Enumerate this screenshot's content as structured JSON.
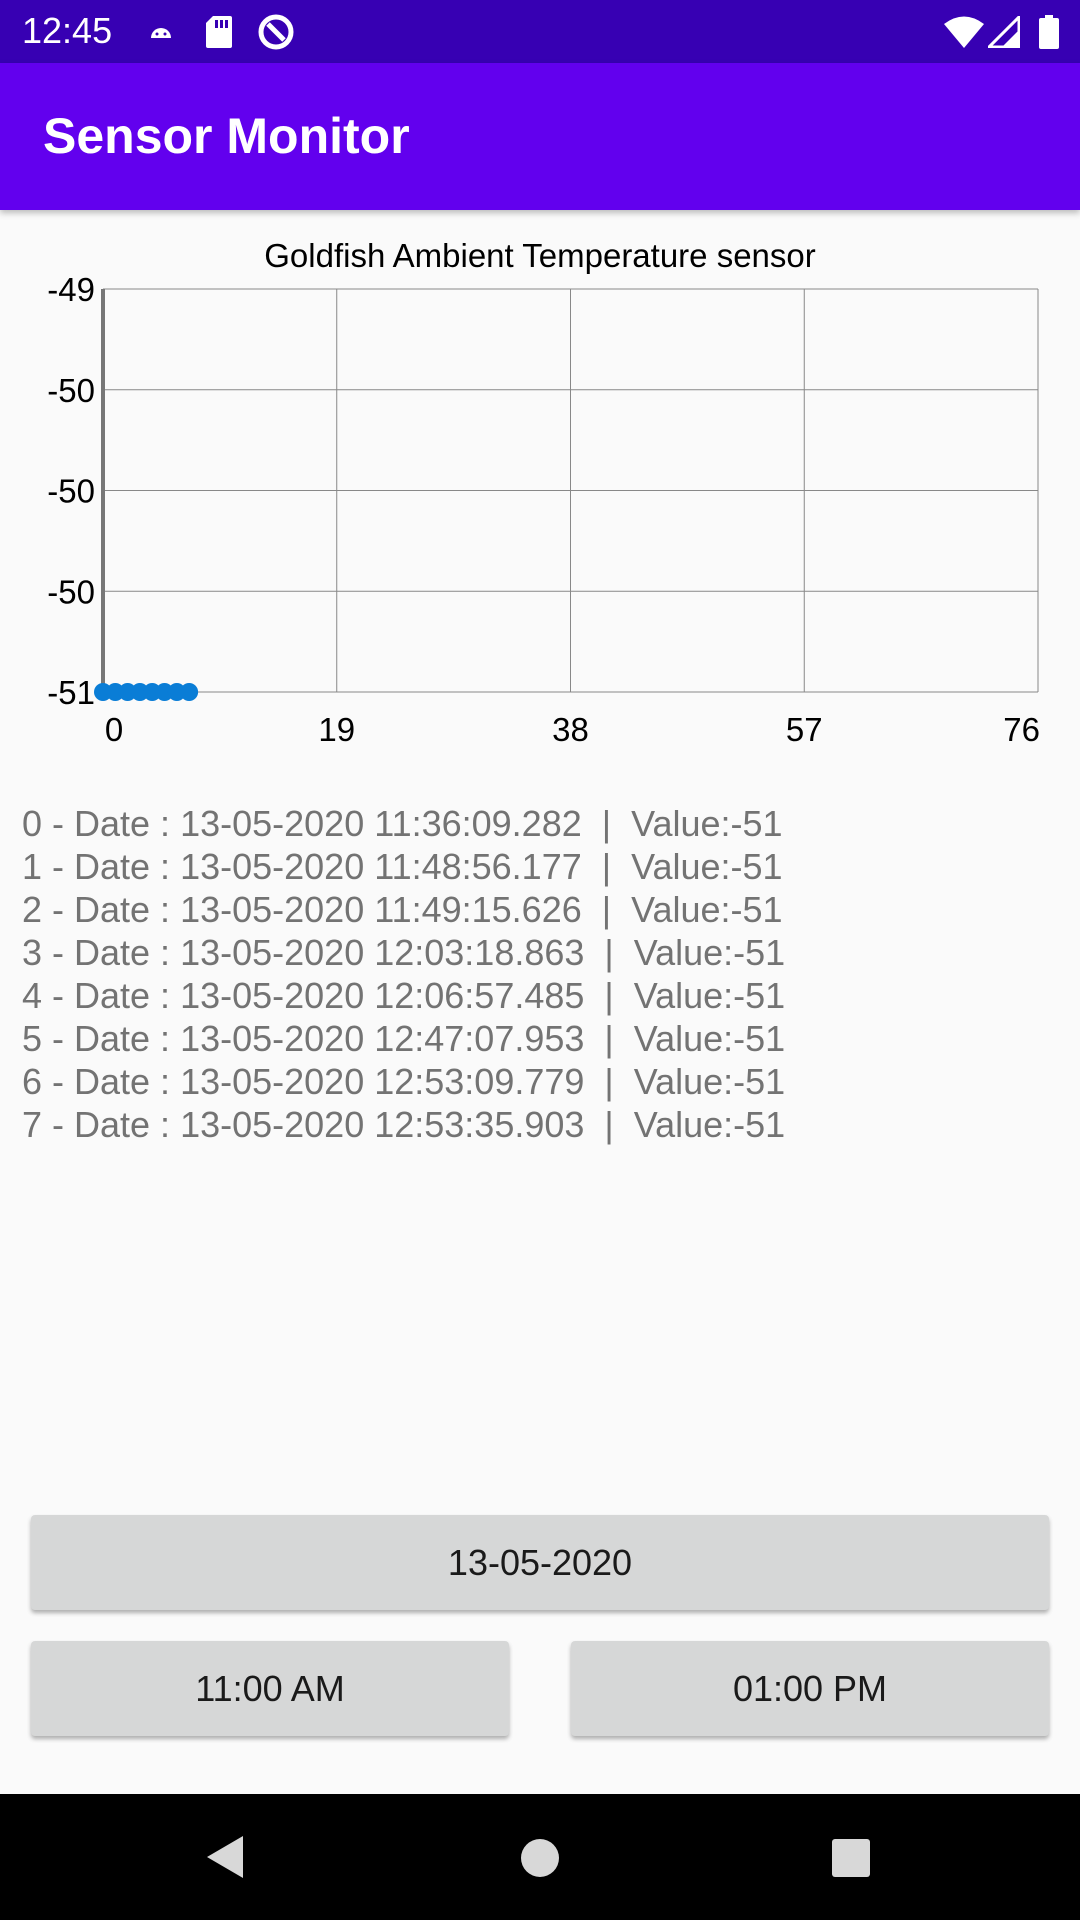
{
  "status_bar": {
    "time": "12:45",
    "icons": [
      "android-notification-icon",
      "sd-card-icon",
      "data-saver-icon",
      "wifi-icon",
      "signal-icon",
      "battery-icon"
    ]
  },
  "app_bar": {
    "title": "Sensor Monitor"
  },
  "chart_data": {
    "type": "scatter",
    "title": "Goldfish Ambient Temperature sensor",
    "xlabel": "",
    "ylabel": "",
    "x_ticks": [
      "0",
      "19",
      "38",
      "57",
      "76"
    ],
    "y_ticks": [
      "-49",
      "-50",
      "-50",
      "-50",
      "-51"
    ],
    "xlim": [
      0,
      76
    ],
    "ylim": [
      -51,
      -49
    ],
    "grid": true,
    "color": "#0a7dd6",
    "series": [
      {
        "x": [
          0,
          1,
          2,
          3,
          4,
          5,
          6,
          7
        ],
        "y": [
          -51,
          -51,
          -51,
          -51,
          -51,
          -51,
          -51,
          -51
        ]
      }
    ]
  },
  "readings": [
    "0 - Date : 13-05-2020 11:36:09.282  |  Value:-51",
    "1 - Date : 13-05-2020 11:48:56.177  |  Value:-51",
    "2 - Date : 13-05-2020 11:49:15.626  |  Value:-51",
    "3 - Date : 13-05-2020 12:03:18.863  |  Value:-51",
    "4 - Date : 13-05-2020 12:06:57.485  |  Value:-51",
    "5 - Date : 13-05-2020 12:47:07.953  |  Value:-51",
    "6 - Date : 13-05-2020 12:53:09.779  |  Value:-51",
    "7 - Date : 13-05-2020 12:53:35.903  |  Value:-51"
  ],
  "controls": {
    "date_button": "13-05-2020",
    "start_time_button": "11:00 AM",
    "end_time_button": "01:00 PM"
  },
  "nav_bar": {
    "icons": [
      "back-icon",
      "home-icon",
      "recents-icon"
    ]
  }
}
